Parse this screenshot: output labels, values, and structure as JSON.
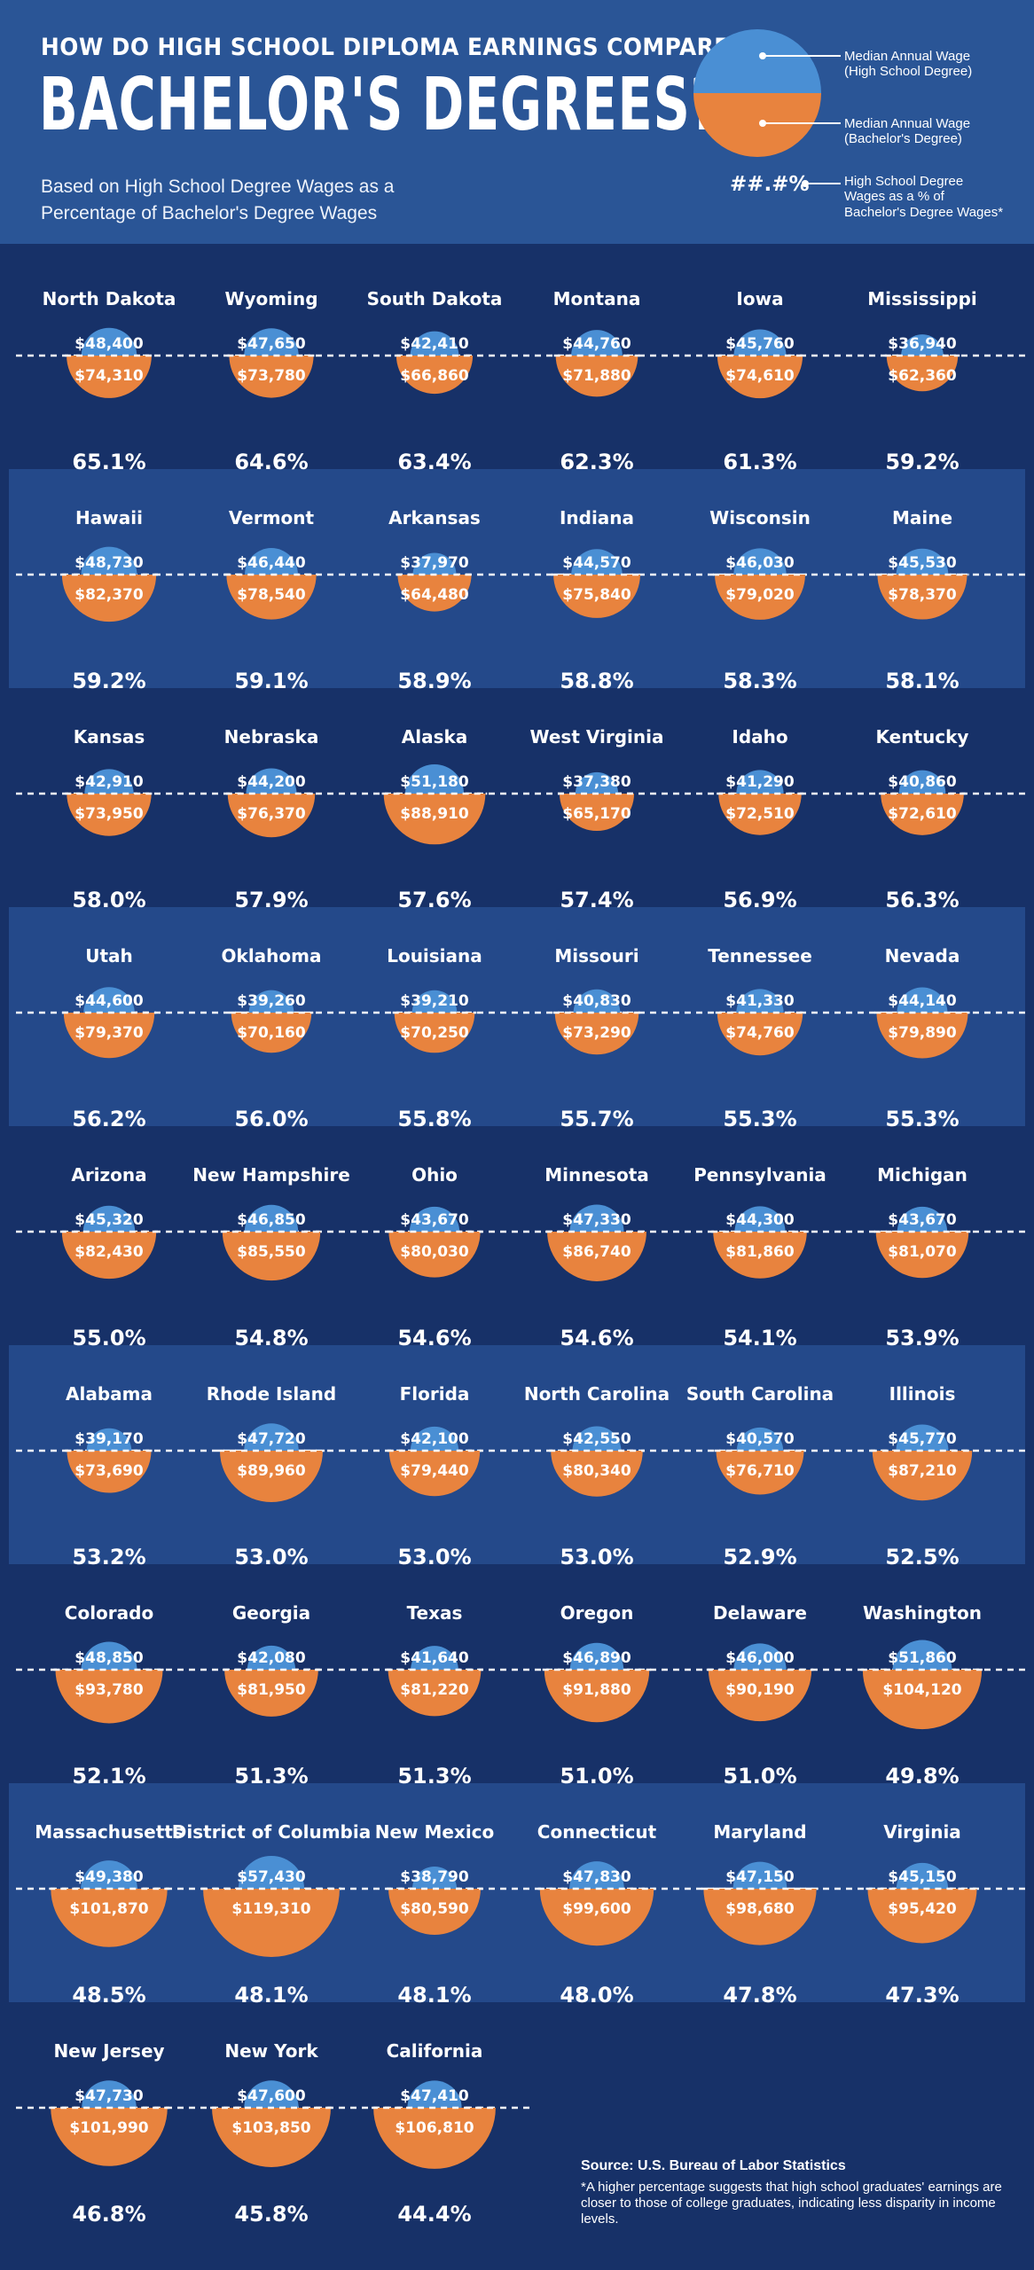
{
  "header": {
    "kicker": "HOW DO HIGH SCHOOL DIPLOMA EARNINGS COMPARE TO",
    "title": "BACHELOR'S DEGREES?",
    "subtitle_line1": "Based on High School Degree Wages as a",
    "subtitle_line2": "Percentage of Bachelor's Degree Wages"
  },
  "legend": {
    "hs_line1": "Median Annual Wage",
    "hs_line2": "(High School Degree)",
    "ba_line1": "Median Annual Wage",
    "ba_line2": "(Bachelor's Degree)",
    "pct_sample": "##.#%",
    "pct_line1": "High School Degree",
    "pct_line2": "Wages as a % of",
    "pct_line3": "Bachelor's Degree Wages*"
  },
  "colors": {
    "hs_blue": "#4a8fd4",
    "ba_orange": "#e8833e",
    "background": "#173168",
    "band": "#24498a"
  },
  "source": {
    "title": "Source: U.S. Bureau of Labor Statistics",
    "note": "*A higher percentage suggests that high school graduates' earnings are closer to those of college graduates, indicating less disparity in income levels."
  },
  "chart_data": {
    "type": "semicircle-pair",
    "series": [
      {
        "name": "Median Annual Wage (High School Degree)"
      },
      {
        "name": "Median Annual Wage (Bachelor's Degree)"
      }
    ],
    "states": [
      {
        "name": "North Dakota",
        "hs": 48400,
        "hs_label": "$48,400",
        "ba": 74310,
        "ba_label": "$74,310",
        "pct": "65.1%"
      },
      {
        "name": "Wyoming",
        "hs": 47650,
        "hs_label": "$47,650",
        "ba": 73780,
        "ba_label": "$73,780",
        "pct": "64.6%"
      },
      {
        "name": "South Dakota",
        "hs": 42410,
        "hs_label": "$42,410",
        "ba": 66860,
        "ba_label": "$66,860",
        "pct": "63.4%"
      },
      {
        "name": "Montana",
        "hs": 44760,
        "hs_label": "$44,760",
        "ba": 71880,
        "ba_label": "$71,880",
        "pct": "62.3%"
      },
      {
        "name": "Iowa",
        "hs": 45760,
        "hs_label": "$45,760",
        "ba": 74610,
        "ba_label": "$74,610",
        "pct": "61.3%"
      },
      {
        "name": "Mississippi",
        "hs": 36940,
        "hs_label": "$36,940",
        "ba": 62360,
        "ba_label": "$62,360",
        "pct": "59.2%"
      },
      {
        "name": "Hawaii",
        "hs": 48730,
        "hs_label": "$48,730",
        "ba": 82370,
        "ba_label": "$82,370",
        "pct": "59.2%"
      },
      {
        "name": "Vermont",
        "hs": 46440,
        "hs_label": "$46,440",
        "ba": 78540,
        "ba_label": "$78,540",
        "pct": "59.1%"
      },
      {
        "name": "Arkansas",
        "hs": 37970,
        "hs_label": "$37,970",
        "ba": 64480,
        "ba_label": "$64,480",
        "pct": "58.9%"
      },
      {
        "name": "Indiana",
        "hs": 44570,
        "hs_label": "$44,570",
        "ba": 75840,
        "ba_label": "$75,840",
        "pct": "58.8%"
      },
      {
        "name": "Wisconsin",
        "hs": 46030,
        "hs_label": "$46,030",
        "ba": 79020,
        "ba_label": "$79,020",
        "pct": "58.3%"
      },
      {
        "name": "Maine",
        "hs": 45530,
        "hs_label": "$45,530",
        "ba": 78370,
        "ba_label": "$78,370",
        "pct": "58.1%"
      },
      {
        "name": "Kansas",
        "hs": 42910,
        "hs_label": "$42,910",
        "ba": 73950,
        "ba_label": "$73,950",
        "pct": "58.0%"
      },
      {
        "name": "Nebraska",
        "hs": 44200,
        "hs_label": "$44,200",
        "ba": 76370,
        "ba_label": "$76,370",
        "pct": "57.9%"
      },
      {
        "name": "Alaska",
        "hs": 51180,
        "hs_label": "$51,180",
        "ba": 88910,
        "ba_label": "$88,910",
        "pct": "57.6%"
      },
      {
        "name": "West Virginia",
        "hs": 37380,
        "hs_label": "$37,380",
        "ba": 65170,
        "ba_label": "$65,170",
        "pct": "57.4%"
      },
      {
        "name": "Idaho",
        "hs": 41290,
        "hs_label": "$41,290",
        "ba": 72510,
        "ba_label": "$72,510",
        "pct": "56.9%"
      },
      {
        "name": "Kentucky",
        "hs": 40860,
        "hs_label": "$40,860",
        "ba": 72610,
        "ba_label": "$72,610",
        "pct": "56.3%"
      },
      {
        "name": "Utah",
        "hs": 44600,
        "hs_label": "$44,600",
        "ba": 79370,
        "ba_label": "$79,370",
        "pct": "56.2%"
      },
      {
        "name": "Oklahoma",
        "hs": 39260,
        "hs_label": "$39,260",
        "ba": 70160,
        "ba_label": "$70,160",
        "pct": "56.0%"
      },
      {
        "name": "Louisiana",
        "hs": 39210,
        "hs_label": "$39,210",
        "ba": 70250,
        "ba_label": "$70,250",
        "pct": "55.8%"
      },
      {
        "name": "Missouri",
        "hs": 40830,
        "hs_label": "$40,830",
        "ba": 73290,
        "ba_label": "$73,290",
        "pct": "55.7%"
      },
      {
        "name": "Tennessee",
        "hs": 41330,
        "hs_label": "$41,330",
        "ba": 74760,
        "ba_label": "$74,760",
        "pct": "55.3%"
      },
      {
        "name": "Nevada",
        "hs": 44140,
        "hs_label": "$44,140",
        "ba": 79890,
        "ba_label": "$79,890",
        "pct": "55.3%"
      },
      {
        "name": "Arizona",
        "hs": 45320,
        "hs_label": "$45,320",
        "ba": 82430,
        "ba_label": "$82,430",
        "pct": "55.0%"
      },
      {
        "name": "New Hampshire",
        "hs": 46850,
        "hs_label": "$46,850",
        "ba": 85550,
        "ba_label": "$85,550",
        "pct": "54.8%"
      },
      {
        "name": "Ohio",
        "hs": 43670,
        "hs_label": "$43,670",
        "ba": 80030,
        "ba_label": "$80,030",
        "pct": "54.6%"
      },
      {
        "name": "Minnesota",
        "hs": 47330,
        "hs_label": "$47,330",
        "ba": 86740,
        "ba_label": "$86,740",
        "pct": "54.6%"
      },
      {
        "name": "Pennsylvania",
        "hs": 44300,
        "hs_label": "$44,300",
        "ba": 81860,
        "ba_label": "$81,860",
        "pct": "54.1%"
      },
      {
        "name": "Michigan",
        "hs": 43670,
        "hs_label": "$43,670",
        "ba": 81070,
        "ba_label": "$81,070",
        "pct": "53.9%"
      },
      {
        "name": "Alabama",
        "hs": 39170,
        "hs_label": "$39,170",
        "ba": 73690,
        "ba_label": "$73,690",
        "pct": "53.2%"
      },
      {
        "name": "Rhode Island",
        "hs": 47720,
        "hs_label": "$47,720",
        "ba": 89960,
        "ba_label": "$89,960",
        "pct": "53.0%"
      },
      {
        "name": "Florida",
        "hs": 42100,
        "hs_label": "$42,100",
        "ba": 79440,
        "ba_label": "$79,440",
        "pct": "53.0%"
      },
      {
        "name": "North Carolina",
        "hs": 42550,
        "hs_label": "$42,550",
        "ba": 80340,
        "ba_label": "$80,340",
        "pct": "53.0%"
      },
      {
        "name": "South Carolina",
        "hs": 40570,
        "hs_label": "$40,570",
        "ba": 76710,
        "ba_label": "$76,710",
        "pct": "52.9%"
      },
      {
        "name": "Illinois",
        "hs": 45770,
        "hs_label": "$45,770",
        "ba": 87210,
        "ba_label": "$87,210",
        "pct": "52.5%"
      },
      {
        "name": "Colorado",
        "hs": 48850,
        "hs_label": "$48,850",
        "ba": 93780,
        "ba_label": "$93,780",
        "pct": "52.1%"
      },
      {
        "name": "Georgia",
        "hs": 42080,
        "hs_label": "$42,080",
        "ba": 81950,
        "ba_label": "$81,950",
        "pct": "51.3%"
      },
      {
        "name": "Texas",
        "hs": 41640,
        "hs_label": "$41,640",
        "ba": 81220,
        "ba_label": "$81,220",
        "pct": "51.3%"
      },
      {
        "name": "Oregon",
        "hs": 46890,
        "hs_label": "$46,890",
        "ba": 91880,
        "ba_label": "$91,880",
        "pct": "51.0%"
      },
      {
        "name": "Delaware",
        "hs": 46000,
        "hs_label": "$46,000",
        "ba": 90190,
        "ba_label": "$90,190",
        "pct": "51.0%"
      },
      {
        "name": "Washington",
        "hs": 51860,
        "hs_label": "$51,860",
        "ba": 104120,
        "ba_label": "$104,120",
        "pct": "49.8%"
      },
      {
        "name": "Massachusetts",
        "hs": 49380,
        "hs_label": "$49,380",
        "ba": 101870,
        "ba_label": "$101,870",
        "pct": "48.5%"
      },
      {
        "name": "District of Columbia",
        "hs": 57430,
        "hs_label": "$57,430",
        "ba": 119310,
        "ba_label": "$119,310",
        "pct": "48.1%"
      },
      {
        "name": "New Mexico",
        "hs": 38790,
        "hs_label": "$38,790",
        "ba": 80590,
        "ba_label": "$80,590",
        "pct": "48.1%"
      },
      {
        "name": "Connecticut",
        "hs": 47830,
        "hs_label": "$47,830",
        "ba": 99600,
        "ba_label": "$99,600",
        "pct": "48.0%"
      },
      {
        "name": "Maryland",
        "hs": 47150,
        "hs_label": "$47,150",
        "ba": 98680,
        "ba_label": "$98,680",
        "pct": "47.8%"
      },
      {
        "name": "Virginia",
        "hs": 45150,
        "hs_label": "$45,150",
        "ba": 95420,
        "ba_label": "$95,420",
        "pct": "47.3%"
      },
      {
        "name": "New Jersey",
        "hs": 47730,
        "hs_label": "$47,730",
        "ba": 101990,
        "ba_label": "$101,990",
        "pct": "46.8%"
      },
      {
        "name": "New York",
        "hs": 47600,
        "hs_label": "$47,600",
        "ba": 103850,
        "ba_label": "$103,850",
        "pct": "45.8%"
      },
      {
        "name": "California",
        "hs": 47410,
        "hs_label": "$47,410",
        "ba": 106810,
        "ba_label": "$106,810",
        "pct": "44.4%"
      }
    ]
  }
}
